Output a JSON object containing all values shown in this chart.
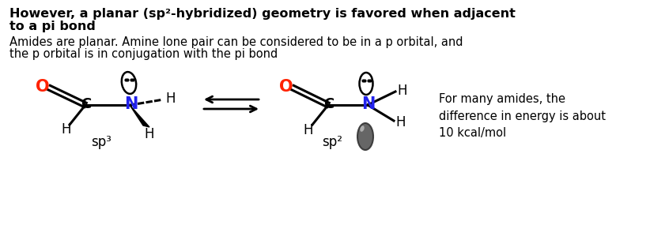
{
  "title_line1": "However, a planar (sp²-hybridized) geometry is favored when adjacent",
  "title_line2": "to a pi bond",
  "subtitle_line1": "Amides are planar. Amine lone pair can be considered to be in a p orbital, and",
  "subtitle_line2": "the p orbital is in conjugation with the pi bond",
  "label_sp3": "sp³",
  "label_sp2": "sp²",
  "note": "For many amides, the\ndifference in energy is about\n10 kcal/mol",
  "color_O": "#FF2200",
  "color_N": "#2222EE",
  "color_C": "#000000",
  "color_H": "#000000",
  "bg_color": "#FFFFFF"
}
